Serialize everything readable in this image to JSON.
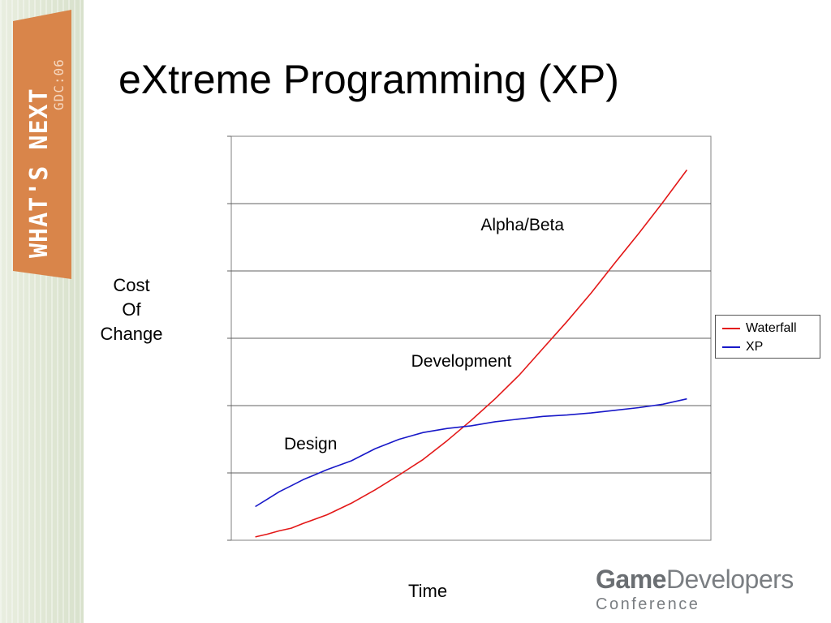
{
  "slide": {
    "title": "eXtreme Programming (XP)",
    "badge": {
      "main_text": "WHAT'S NEXT",
      "sub_text": "GDC:06",
      "color": "#d9854a"
    },
    "logo": {
      "brand_bold": "Game",
      "brand_rest": "Developers",
      "line2": "Conference",
      "color": "#7a7e82"
    }
  },
  "chart_data": {
    "type": "line",
    "title": "",
    "xlabel": "Time",
    "ylabel_lines": [
      "Cost",
      "Of",
      "Change"
    ],
    "grid": true,
    "legend_position": "right",
    "ylim": [
      0,
      6
    ],
    "xlim": [
      0,
      20
    ],
    "annotations": [
      {
        "text": "Design",
        "x": 2.2,
        "y": 1.35
      },
      {
        "text": "Development",
        "x": 7.5,
        "y": 2.58
      },
      {
        "text": "Alpha/Beta",
        "x": 10.4,
        "y": 4.6
      }
    ],
    "series": [
      {
        "name": "Waterfall",
        "color": "#e31818",
        "x": [
          1,
          1.5,
          2,
          2.5,
          3,
          4,
          5,
          6,
          7,
          8,
          9,
          10,
          11,
          12,
          13,
          14,
          15,
          16,
          17,
          18,
          19
        ],
        "y": [
          0.05,
          0.09,
          0.14,
          0.18,
          0.25,
          0.38,
          0.55,
          0.75,
          0.97,
          1.2,
          1.48,
          1.78,
          2.1,
          2.45,
          2.85,
          3.25,
          3.67,
          4.12,
          4.56,
          5.02,
          5.5
        ]
      },
      {
        "name": "XP",
        "color": "#1818c8",
        "x": [
          1,
          1.5,
          2,
          2.5,
          3,
          4,
          5,
          6,
          7,
          8,
          9,
          10,
          11,
          12,
          13,
          14,
          15,
          16,
          17,
          18,
          19
        ],
        "y": [
          0.5,
          0.61,
          0.72,
          0.81,
          0.9,
          1.05,
          1.18,
          1.36,
          1.5,
          1.6,
          1.66,
          1.7,
          1.76,
          1.8,
          1.84,
          1.86,
          1.89,
          1.93,
          1.97,
          2.02,
          2.1
        ]
      }
    ]
  }
}
